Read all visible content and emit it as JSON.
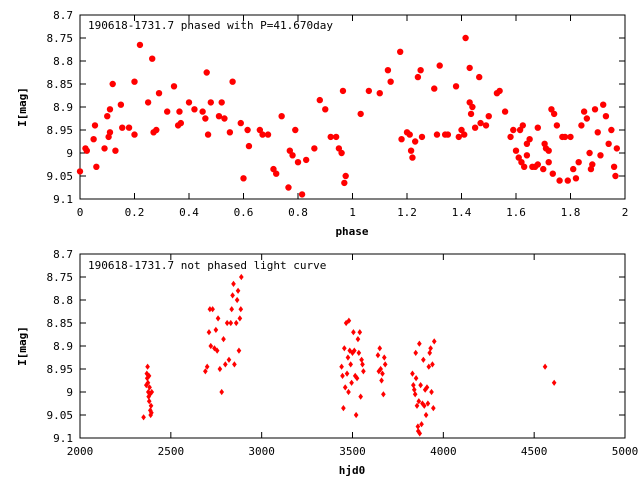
{
  "chart_data": [
    {
      "type": "scatter",
      "title": "190618-1731.7 phased with P=41.670day",
      "xlabel": "phase",
      "ylabel": "I[mag]",
      "xlim": [
        0,
        2
      ],
      "ylim": [
        9.1,
        8.7
      ],
      "y_inverted": true,
      "grid": false,
      "marker_color": "#ff0000",
      "x_ticks": [
        0,
        0.2,
        0.4,
        0.6,
        0.8,
        1,
        1.2,
        1.4,
        1.6,
        1.8,
        2
      ],
      "x_tick_labels": [
        "0",
        "0.2",
        "0.4",
        "0.6",
        "0.8",
        "1",
        "1.2",
        "1.4",
        "1.6",
        "1.8",
        "2"
      ],
      "y_ticks": [
        8.7,
        8.75,
        8.8,
        8.85,
        8.9,
        8.95,
        9,
        9.05,
        9.1
      ],
      "y_tick_labels": [
        "8.7",
        "8.75",
        "8.8",
        "8.85",
        "8.9",
        "8.95",
        "9",
        "9.05",
        "9.1"
      ],
      "points": [
        [
          0.0,
          9.04
        ],
        [
          0.02,
          8.99
        ],
        [
          0.025,
          8.995
        ],
        [
          0.05,
          8.97
        ],
        [
          0.055,
          8.94
        ],
        [
          0.06,
          9.03
        ],
        [
          0.09,
          8.99
        ],
        [
          0.1,
          8.92
        ],
        [
          0.105,
          8.965
        ],
        [
          0.11,
          8.955
        ],
        [
          0.11,
          8.905
        ],
        [
          0.12,
          8.85
        ],
        [
          0.13,
          8.995
        ],
        [
          0.15,
          8.895
        ],
        [
          0.155,
          8.945
        ],
        [
          0.18,
          8.945
        ],
        [
          0.2,
          8.96
        ],
        [
          0.2,
          8.845
        ],
        [
          0.22,
          8.765
        ],
        [
          0.25,
          8.89
        ],
        [
          0.265,
          8.795
        ],
        [
          0.27,
          8.955
        ],
        [
          0.28,
          8.95
        ],
        [
          0.29,
          8.87
        ],
        [
          0.32,
          8.91
        ],
        [
          0.345,
          8.855
        ],
        [
          0.36,
          8.94
        ],
        [
          0.365,
          8.91
        ],
        [
          0.37,
          8.935
        ],
        [
          0.4,
          8.89
        ],
        [
          0.42,
          8.905
        ],
        [
          0.45,
          8.91
        ],
        [
          0.46,
          8.925
        ],
        [
          0.47,
          8.96
        ],
        [
          0.465,
          8.825
        ],
        [
          0.48,
          8.89
        ],
        [
          0.52,
          8.89
        ],
        [
          0.51,
          8.92
        ],
        [
          0.53,
          8.925
        ],
        [
          0.55,
          8.955
        ],
        [
          0.56,
          8.845
        ],
        [
          0.59,
          8.935
        ],
        [
          0.6,
          9.055
        ],
        [
          0.615,
          8.95
        ],
        [
          0.62,
          8.985
        ],
        [
          0.66,
          8.95
        ],
        [
          0.67,
          8.96
        ],
        [
          0.69,
          8.96
        ],
        [
          0.71,
          9.035
        ],
        [
          0.72,
          9.045
        ],
        [
          0.74,
          8.92
        ],
        [
          0.765,
          9.075
        ],
        [
          0.77,
          8.995
        ],
        [
          0.78,
          9.005
        ],
        [
          0.79,
          8.95
        ],
        [
          0.8,
          9.02
        ],
        [
          0.815,
          9.09
        ],
        [
          0.83,
          9.015
        ],
        [
          0.86,
          8.99
        ],
        [
          0.88,
          8.885
        ],
        [
          0.9,
          8.905
        ],
        [
          0.92,
          8.965
        ],
        [
          0.94,
          8.965
        ],
        [
          0.95,
          8.99
        ],
        [
          0.96,
          9.0
        ],
        [
          0.965,
          8.865
        ],
        [
          0.97,
          9.065
        ],
        [
          0.975,
          9.05
        ],
        [
          1.03,
          8.915
        ],
        [
          1.06,
          8.865
        ],
        [
          1.1,
          8.87
        ],
        [
          1.13,
          8.82
        ],
        [
          1.14,
          8.845
        ],
        [
          1.175,
          8.78
        ],
        [
          1.18,
          8.97
        ],
        [
          1.2,
          8.955
        ],
        [
          1.21,
          8.96
        ],
        [
          1.215,
          8.995
        ],
        [
          1.22,
          9.01
        ],
        [
          1.23,
          8.975
        ],
        [
          1.24,
          8.835
        ],
        [
          1.25,
          8.82
        ],
        [
          1.255,
          8.965
        ],
        [
          1.3,
          8.86
        ],
        [
          1.31,
          8.96
        ],
        [
          1.32,
          8.81
        ],
        [
          1.34,
          8.96
        ],
        [
          1.35,
          8.96
        ],
        [
          1.38,
          8.855
        ],
        [
          1.39,
          8.965
        ],
        [
          1.4,
          8.95
        ],
        [
          1.41,
          8.96
        ],
        [
          1.415,
          8.75
        ],
        [
          1.43,
          8.815
        ],
        [
          1.43,
          8.89
        ],
        [
          1.435,
          8.915
        ],
        [
          1.44,
          8.9
        ],
        [
          1.45,
          8.945
        ],
        [
          1.465,
          8.835
        ],
        [
          1.47,
          8.935
        ],
        [
          1.49,
          8.94
        ],
        [
          1.5,
          8.92
        ],
        [
          1.53,
          8.87
        ],
        [
          1.54,
          8.865
        ],
        [
          1.56,
          8.91
        ],
        [
          1.58,
          8.965
        ],
        [
          1.59,
          8.95
        ],
        [
          1.6,
          8.995
        ],
        [
          1.61,
          9.01
        ],
        [
          1.615,
          8.95
        ],
        [
          1.62,
          9.02
        ],
        [
          1.625,
          8.94
        ],
        [
          1.63,
          9.03
        ],
        [
          1.64,
          8.98
        ],
        [
          1.64,
          9.005
        ],
        [
          1.65,
          8.97
        ],
        [
          1.66,
          9.03
        ],
        [
          1.67,
          9.03
        ],
        [
          1.68,
          8.945
        ],
        [
          1.68,
          9.025
        ],
        [
          1.7,
          9.035
        ],
        [
          1.705,
          8.98
        ],
        [
          1.71,
          8.99
        ],
        [
          1.72,
          8.995
        ],
        [
          1.72,
          9.02
        ],
        [
          1.73,
          8.905
        ],
        [
          1.735,
          9.045
        ],
        [
          1.74,
          8.915
        ],
        [
          1.75,
          8.94
        ],
        [
          1.76,
          9.06
        ],
        [
          1.77,
          8.965
        ],
        [
          1.78,
          8.965
        ],
        [
          1.79,
          9.06
        ],
        [
          1.8,
          8.965
        ],
        [
          1.81,
          9.035
        ],
        [
          1.82,
          9.055
        ],
        [
          1.83,
          9.02
        ],
        [
          1.84,
          8.94
        ],
        [
          1.85,
          8.91
        ],
        [
          1.86,
          8.925
        ],
        [
          1.87,
          9.0
        ],
        [
          1.875,
          9.035
        ],
        [
          1.88,
          9.025
        ],
        [
          1.89,
          8.905
        ],
        [
          1.9,
          8.955
        ],
        [
          1.91,
          9.005
        ],
        [
          1.92,
          8.895
        ],
        [
          1.93,
          8.92
        ],
        [
          1.94,
          8.98
        ],
        [
          1.95,
          8.95
        ],
        [
          1.96,
          9.03
        ],
        [
          1.965,
          9.05
        ],
        [
          1.97,
          8.99
        ]
      ]
    },
    {
      "type": "scatter",
      "title": "190618-1731.7 not phased light curve",
      "xlabel": "hjd0",
      "ylabel": "I[mag]",
      "xlim": [
        2000,
        5000
      ],
      "ylim": [
        9.1,
        8.7
      ],
      "y_inverted": true,
      "grid": false,
      "marker_color": "#ff0000",
      "x_ticks": [
        2000,
        2500,
        3000,
        3500,
        4000,
        4500,
        5000
      ],
      "x_tick_labels": [
        "2000",
        "2500",
        "3000",
        "3500",
        "4000",
        "4500",
        "5000"
      ],
      "y_ticks": [
        8.7,
        8.75,
        8.8,
        8.85,
        8.9,
        8.95,
        9,
        9.05,
        9.1
      ],
      "y_tick_labels": [
        "8.7",
        "8.75",
        "8.8",
        "8.85",
        "8.9",
        "8.95",
        "9",
        "9.05",
        "9.1"
      ],
      "points": [
        [
          2350,
          9.055
        ],
        [
          2365,
          8.985
        ],
        [
          2368,
          8.96
        ],
        [
          2370,
          8.97
        ],
        [
          2372,
          8.945
        ],
        [
          2374,
          8.98
        ],
        [
          2376,
          9.0
        ],
        [
          2378,
          9.01
        ],
        [
          2380,
          8.965
        ],
        [
          2381,
          9.02
        ],
        [
          2383,
          8.99
        ],
        [
          2385,
          9.005
        ],
        [
          2387,
          9.04
        ],
        [
          2389,
          9.05
        ],
        [
          2391,
          9.03
        ],
        [
          2393,
          9.045
        ],
        [
          2395,
          9.0
        ],
        [
          2690,
          8.955
        ],
        [
          2700,
          8.945
        ],
        [
          2710,
          8.87
        ],
        [
          2715,
          8.82
        ],
        [
          2720,
          8.9
        ],
        [
          2730,
          8.82
        ],
        [
          2740,
          8.905
        ],
        [
          2748,
          8.865
        ],
        [
          2755,
          8.91
        ],
        [
          2760,
          8.84
        ],
        [
          2770,
          8.95
        ],
        [
          2780,
          9.0
        ],
        [
          2790,
          8.885
        ],
        [
          2800,
          8.94
        ],
        [
          2810,
          8.85
        ],
        [
          2820,
          8.93
        ],
        [
          2830,
          8.85
        ],
        [
          2835,
          8.82
        ],
        [
          2840,
          8.79
        ],
        [
          2845,
          8.765
        ],
        [
          2850,
          8.94
        ],
        [
          2860,
          8.85
        ],
        [
          2865,
          8.8
        ],
        [
          2870,
          8.78
        ],
        [
          2875,
          8.91
        ],
        [
          2880,
          8.84
        ],
        [
          2885,
          8.82
        ],
        [
          2888,
          8.75
        ],
        [
          3440,
          8.945
        ],
        [
          3445,
          8.965
        ],
        [
          3450,
          9.035
        ],
        [
          3455,
          8.905
        ],
        [
          3460,
          8.99
        ],
        [
          3465,
          8.85
        ],
        [
          3470,
          8.96
        ],
        [
          3475,
          8.925
        ],
        [
          3478,
          9.0
        ],
        [
          3480,
          8.845
        ],
        [
          3485,
          8.91
        ],
        [
          3490,
          8.94
        ],
        [
          3495,
          8.98
        ],
        [
          3500,
          8.915
        ],
        [
          3505,
          8.87
        ],
        [
          3510,
          8.91
        ],
        [
          3515,
          8.965
        ],
        [
          3520,
          9.05
        ],
        [
          3525,
          8.97
        ],
        [
          3530,
          8.885
        ],
        [
          3535,
          8.915
        ],
        [
          3540,
          8.87
        ],
        [
          3545,
          9.01
        ],
        [
          3550,
          8.93
        ],
        [
          3555,
          8.94
        ],
        [
          3560,
          8.955
        ],
        [
          3640,
          8.92
        ],
        [
          3645,
          8.955
        ],
        [
          3650,
          8.905
        ],
        [
          3655,
          8.95
        ],
        [
          3660,
          8.975
        ],
        [
          3665,
          8.96
        ],
        [
          3670,
          9.005
        ],
        [
          3675,
          8.925
        ],
        [
          3680,
          8.94
        ],
        [
          3830,
          8.96
        ],
        [
          3835,
          8.985
        ],
        [
          3840,
          8.995
        ],
        [
          3845,
          9.005
        ],
        [
          3848,
          8.915
        ],
        [
          3850,
          8.97
        ],
        [
          3855,
          9.03
        ],
        [
          3860,
          9.075
        ],
        [
          3862,
          9.085
        ],
        [
          3865,
          9.02
        ],
        [
          3868,
          8.895
        ],
        [
          3870,
          9.09
        ],
        [
          3875,
          8.985
        ],
        [
          3880,
          9.07
        ],
        [
          3885,
          9.025
        ],
        [
          3890,
          8.93
        ],
        [
          3895,
          9.03
        ],
        [
          3900,
          8.995
        ],
        [
          3905,
          9.05
        ],
        [
          3910,
          8.99
        ],
        [
          3915,
          9.025
        ],
        [
          3920,
          8.945
        ],
        [
          3925,
          8.915
        ],
        [
          3930,
          8.905
        ],
        [
          3935,
          9.0
        ],
        [
          3940,
          8.94
        ],
        [
          3945,
          9.035
        ],
        [
          3950,
          8.89
        ],
        [
          4560,
          8.945
        ],
        [
          4610,
          8.98
        ]
      ]
    }
  ]
}
